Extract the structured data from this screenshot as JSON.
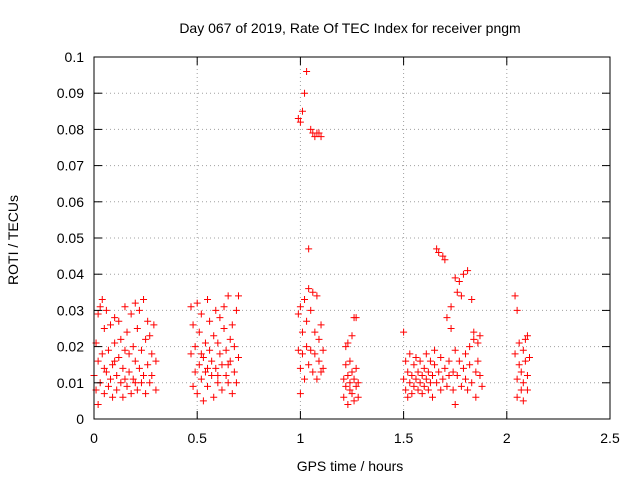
{
  "chart_data": {
    "type": "scatter",
    "title": "Day 067 of 2019, Rate Of TEC Index for receiver pngm",
    "xlabel": "GPS time / hours",
    "ylabel": "ROTI / TECUs",
    "xlim": [
      0,
      2.5
    ],
    "ylim": [
      0,
      0.1
    ],
    "xticks": [
      0,
      0.5,
      1,
      1.5,
      2,
      2.5
    ],
    "xtick_labels": [
      "0",
      "0.5",
      "1",
      "1.5",
      "2",
      "2.5"
    ],
    "yticks": [
      0,
      0.01,
      0.02,
      0.03,
      0.04,
      0.05,
      0.06,
      0.07,
      0.08,
      0.09,
      0.1
    ],
    "ytick_labels": [
      "0",
      "0.01",
      "0.02",
      "0.03",
      "0.04",
      "0.05",
      "0.06",
      "0.07",
      "0.08",
      "0.09",
      "0.1"
    ],
    "grid": true,
    "marker": "+",
    "marker_color": "#ff0000",
    "series": [
      {
        "name": "ROTI",
        "points": [
          [
            0.0,
            0.012
          ],
          [
            0.01,
            0.021
          ],
          [
            0.01,
            0.008
          ],
          [
            0.02,
            0.029
          ],
          [
            0.02,
            0.016
          ],
          [
            0.02,
            0.004
          ],
          [
            0.03,
            0.031
          ],
          [
            0.03,
            0.01
          ],
          [
            0.04,
            0.033
          ],
          [
            0.04,
            0.018
          ],
          [
            0.05,
            0.007
          ],
          [
            0.05,
            0.025
          ],
          [
            0.06,
            0.013
          ],
          [
            0.06,
            0.03
          ],
          [
            0.07,
            0.009
          ],
          [
            0.07,
            0.019
          ],
          [
            0.08,
            0.011
          ],
          [
            0.08,
            0.026
          ],
          [
            0.09,
            0.015
          ],
          [
            0.09,
            0.006
          ],
          [
            0.1,
            0.021
          ],
          [
            0.1,
            0.028
          ],
          [
            0.11,
            0.012
          ],
          [
            0.11,
            0.008
          ],
          [
            0.12,
            0.017
          ],
          [
            0.12,
            0.027
          ],
          [
            0.13,
            0.01
          ],
          [
            0.13,
            0.022
          ],
          [
            0.14,
            0.014
          ],
          [
            0.14,
            0.006
          ],
          [
            0.15,
            0.019
          ],
          [
            0.15,
            0.031
          ],
          [
            0.16,
            0.009
          ],
          [
            0.16,
            0.024
          ],
          [
            0.17,
            0.013
          ],
          [
            0.17,
            0.018
          ],
          [
            0.18,
            0.007
          ],
          [
            0.18,
            0.029
          ],
          [
            0.19,
            0.011
          ],
          [
            0.19,
            0.02
          ],
          [
            0.2,
            0.016
          ],
          [
            0.2,
            0.032
          ],
          [
            0.21,
            0.008
          ],
          [
            0.21,
            0.025
          ],
          [
            0.22,
            0.014
          ],
          [
            0.22,
            0.03
          ],
          [
            0.23,
            0.01
          ],
          [
            0.23,
            0.019
          ],
          [
            0.24,
            0.033
          ],
          [
            0.24,
            0.012
          ],
          [
            0.25,
            0.022
          ],
          [
            0.25,
            0.007
          ],
          [
            0.26,
            0.027
          ],
          [
            0.26,
            0.015
          ],
          [
            0.27,
            0.01
          ],
          [
            0.27,
            0.023
          ],
          [
            0.28,
            0.018
          ],
          [
            0.28,
            0.012
          ],
          [
            0.29,
            0.026
          ],
          [
            0.3,
            0.008
          ],
          [
            0.3,
            0.016
          ],
          [
            0.15,
            0.011
          ],
          [
            0.05,
            0.014
          ],
          [
            0.2,
            0.01
          ],
          [
            0.1,
            0.016
          ],
          [
            0.47,
            0.031
          ],
          [
            0.47,
            0.018
          ],
          [
            0.48,
            0.009
          ],
          [
            0.48,
            0.026
          ],
          [
            0.49,
            0.013
          ],
          [
            0.49,
            0.02
          ],
          [
            0.5,
            0.032
          ],
          [
            0.5,
            0.007
          ],
          [
            0.51,
            0.015
          ],
          [
            0.51,
            0.024
          ],
          [
            0.52,
            0.011
          ],
          [
            0.52,
            0.029
          ],
          [
            0.53,
            0.017
          ],
          [
            0.53,
            0.005
          ],
          [
            0.54,
            0.021
          ],
          [
            0.54,
            0.013
          ],
          [
            0.55,
            0.033
          ],
          [
            0.55,
            0.009
          ],
          [
            0.56,
            0.019
          ],
          [
            0.56,
            0.027
          ],
          [
            0.57,
            0.012
          ],
          [
            0.57,
            0.016
          ],
          [
            0.58,
            0.006
          ],
          [
            0.58,
            0.023
          ],
          [
            0.59,
            0.03
          ],
          [
            0.59,
            0.014
          ],
          [
            0.6,
            0.01
          ],
          [
            0.6,
            0.021
          ],
          [
            0.61,
            0.018
          ],
          [
            0.61,
            0.028
          ],
          [
            0.62,
            0.008
          ],
          [
            0.62,
            0.015
          ],
          [
            0.63,
            0.025
          ],
          [
            0.63,
            0.031
          ],
          [
            0.64,
            0.012
          ],
          [
            0.64,
            0.019
          ],
          [
            0.65,
            0.034
          ],
          [
            0.65,
            0.01
          ],
          [
            0.66,
            0.022
          ],
          [
            0.66,
            0.016
          ],
          [
            0.67,
            0.007
          ],
          [
            0.67,
            0.026
          ],
          [
            0.68,
            0.013
          ],
          [
            0.68,
            0.02
          ],
          [
            0.69,
            0.03
          ],
          [
            0.69,
            0.01
          ],
          [
            0.7,
            0.034
          ],
          [
            0.7,
            0.017
          ],
          [
            0.55,
            0.014
          ],
          [
            0.6,
            0.012
          ],
          [
            0.52,
            0.018
          ],
          [
            0.65,
            0.015
          ],
          [
            0.99,
            0.083
          ],
          [
            0.99,
            0.029
          ],
          [
            0.99,
            0.019
          ],
          [
            1.0,
            0.007
          ],
          [
            1.0,
            0.014
          ],
          [
            1.0,
            0.031
          ],
          [
            1.0,
            0.082
          ],
          [
            1.01,
            0.024
          ],
          [
            1.01,
            0.018
          ],
          [
            1.01,
            0.085
          ],
          [
            1.02,
            0.011
          ],
          [
            1.02,
            0.033
          ],
          [
            1.02,
            0.09
          ],
          [
            1.03,
            0.096
          ],
          [
            1.03,
            0.02
          ],
          [
            1.03,
            0.027
          ],
          [
            1.04,
            0.015
          ],
          [
            1.04,
            0.047
          ],
          [
            1.04,
            0.036
          ],
          [
            1.05,
            0.08
          ],
          [
            1.05,
            0.03
          ],
          [
            1.05,
            0.019
          ],
          [
            1.06,
            0.013
          ],
          [
            1.06,
            0.079
          ],
          [
            1.06,
            0.035
          ],
          [
            1.07,
            0.024
          ],
          [
            1.07,
            0.018
          ],
          [
            1.07,
            0.078
          ],
          [
            1.08,
            0.011
          ],
          [
            1.08,
            0.034
          ],
          [
            1.08,
            0.079
          ],
          [
            1.09,
            0.022
          ],
          [
            1.09,
            0.016
          ],
          [
            1.09,
            0.079
          ],
          [
            1.1,
            0.026
          ],
          [
            1.1,
            0.013
          ],
          [
            1.1,
            0.078
          ],
          [
            1.11,
            0.019
          ],
          [
            1.11,
            0.014
          ],
          [
            1.21,
            0.011
          ],
          [
            1.21,
            0.006
          ],
          [
            1.22,
            0.015
          ],
          [
            1.22,
            0.009
          ],
          [
            1.22,
            0.02
          ],
          [
            1.23,
            0.004
          ],
          [
            1.23,
            0.012
          ],
          [
            1.23,
            0.021
          ],
          [
            1.24,
            0.008
          ],
          [
            1.24,
            0.016
          ],
          [
            1.24,
            0.01
          ],
          [
            1.25,
            0.013
          ],
          [
            1.25,
            0.023
          ],
          [
            1.25,
            0.007
          ],
          [
            1.26,
            0.011
          ],
          [
            1.26,
            0.028
          ],
          [
            1.26,
            0.005
          ],
          [
            1.27,
            0.009
          ],
          [
            1.27,
            0.014
          ],
          [
            1.27,
            0.028
          ],
          [
            1.28,
            0.01
          ],
          [
            1.28,
            0.006
          ],
          [
            1.5,
            0.024
          ],
          [
            1.5,
            0.011
          ],
          [
            1.51,
            0.008
          ],
          [
            1.51,
            0.016
          ],
          [
            1.52,
            0.013
          ],
          [
            1.52,
            0.006
          ],
          [
            1.53,
            0.01
          ],
          [
            1.53,
            0.018
          ],
          [
            1.54,
            0.012
          ],
          [
            1.54,
            0.007
          ],
          [
            1.55,
            0.015
          ],
          [
            1.55,
            0.009
          ],
          [
            1.56,
            0.011
          ],
          [
            1.56,
            0.017
          ],
          [
            1.57,
            0.008
          ],
          [
            1.57,
            0.013
          ],
          [
            1.58,
            0.01
          ],
          [
            1.58,
            0.016
          ],
          [
            1.59,
            0.012
          ],
          [
            1.59,
            0.007
          ],
          [
            1.6,
            0.014
          ],
          [
            1.6,
            0.009
          ],
          [
            1.61,
            0.011
          ],
          [
            1.61,
            0.018
          ],
          [
            1.62,
            0.008
          ],
          [
            1.62,
            0.013
          ],
          [
            1.63,
            0.01
          ],
          [
            1.63,
            0.016
          ],
          [
            1.64,
            0.012
          ],
          [
            1.64,
            0.006
          ],
          [
            1.65,
            0.019
          ],
          [
            1.65,
            0.015
          ],
          [
            1.66,
            0.047
          ],
          [
            1.66,
            0.01
          ],
          [
            1.67,
            0.013
          ],
          [
            1.67,
            0.046
          ],
          [
            1.68,
            0.008
          ],
          [
            1.68,
            0.017
          ],
          [
            1.69,
            0.045
          ],
          [
            1.69,
            0.011
          ],
          [
            1.7,
            0.044
          ],
          [
            1.7,
            0.014
          ],
          [
            1.71,
            0.009
          ],
          [
            1.71,
            0.028
          ],
          [
            1.72,
            0.012
          ],
          [
            1.72,
            0.016
          ],
          [
            1.73,
            0.025
          ],
          [
            1.73,
            0.031
          ],
          [
            1.74,
            0.008
          ],
          [
            1.74,
            0.013
          ],
          [
            1.75,
            0.039
          ],
          [
            1.75,
            0.004
          ],
          [
            1.75,
            0.019
          ],
          [
            1.76,
            0.035
          ],
          [
            1.76,
            0.012
          ],
          [
            1.77,
            0.038
          ],
          [
            1.77,
            0.016
          ],
          [
            1.78,
            0.009
          ],
          [
            1.78,
            0.034
          ],
          [
            1.79,
            0.04
          ],
          [
            1.79,
            0.014
          ],
          [
            1.8,
            0.011
          ],
          [
            1.8,
            0.018
          ],
          [
            1.81,
            0.041
          ],
          [
            1.81,
            0.008
          ],
          [
            1.82,
            0.015
          ],
          [
            1.82,
            0.02
          ],
          [
            1.83,
            0.033
          ],
          [
            1.83,
            0.01
          ],
          [
            1.84,
            0.022
          ],
          [
            1.84,
            0.024
          ],
          [
            1.85,
            0.013
          ],
          [
            1.85,
            0.006
          ],
          [
            1.86,
            0.021
          ],
          [
            1.86,
            0.016
          ],
          [
            1.87,
            0.012
          ],
          [
            1.87,
            0.023
          ],
          [
            1.88,
            0.009
          ],
          [
            2.04,
            0.034
          ],
          [
            2.04,
            0.018
          ],
          [
            2.05,
            0.011
          ],
          [
            2.05,
            0.03
          ],
          [
            2.05,
            0.006
          ],
          [
            2.06,
            0.015
          ],
          [
            2.06,
            0.021
          ],
          [
            2.07,
            0.008
          ],
          [
            2.07,
            0.013
          ],
          [
            2.08,
            0.019
          ],
          [
            2.08,
            0.01
          ],
          [
            2.08,
            0.005
          ],
          [
            2.09,
            0.016
          ],
          [
            2.09,
            0.022
          ],
          [
            2.1,
            0.012
          ],
          [
            2.1,
            0.008
          ],
          [
            2.1,
            0.023
          ],
          [
            2.11,
            0.017
          ]
        ]
      }
    ]
  }
}
